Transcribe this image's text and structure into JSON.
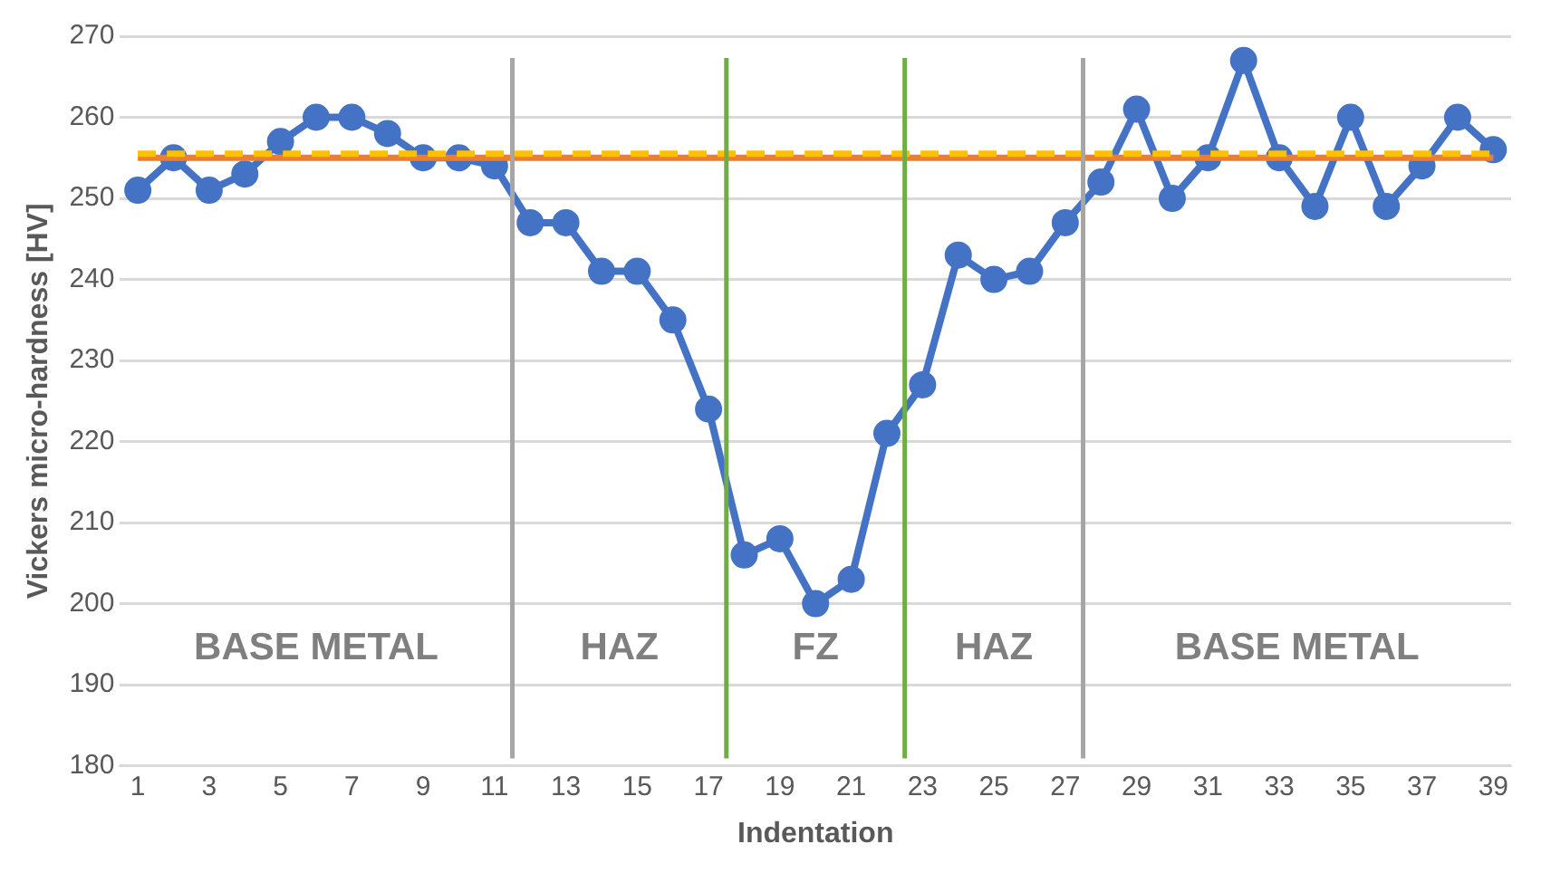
{
  "chart_data": {
    "type": "line",
    "xlabel": "Indentation",
    "ylabel": "Vickers micro-hardness [HV]",
    "x": [
      1,
      2,
      3,
      4,
      5,
      6,
      7,
      8,
      9,
      10,
      11,
      12,
      13,
      14,
      15,
      16,
      17,
      18,
      19,
      20,
      21,
      22,
      23,
      24,
      25,
      26,
      27,
      28,
      29,
      30,
      31,
      32,
      33,
      34,
      35,
      36,
      37,
      38,
      39
    ],
    "series": [
      {
        "color": "#4472c4",
        "values": [
          251,
          255,
          251,
          253,
          257,
          260,
          260,
          258,
          255,
          255,
          254,
          247,
          247,
          241,
          241,
          235,
          224,
          206,
          208,
          200,
          203,
          221,
          227,
          243,
          240,
          241,
          247,
          252,
          261,
          250,
          255,
          267,
          255,
          249,
          260,
          249,
          254,
          260,
          256
        ]
      }
    ],
    "xlim": [
      0.5,
      39.5
    ],
    "xticks": [
      1,
      3,
      5,
      7,
      9,
      11,
      13,
      15,
      17,
      19,
      21,
      23,
      25,
      27,
      29,
      31,
      33,
      35,
      37,
      39
    ],
    "ylim": [
      180,
      270
    ],
    "yticks": [
      180,
      190,
      200,
      210,
      220,
      230,
      240,
      250,
      260,
      270
    ],
    "grid": "y",
    "legend": false,
    "marker": "circle",
    "line_style": "solid",
    "ref_lines": [
      {
        "axis": "y",
        "value": 255,
        "color": "#ed7d31",
        "line_style": "solid"
      },
      {
        "axis": "y",
        "value": 255.5,
        "color": "#ffc000",
        "line_style": "dashed"
      },
      {
        "axis": "x",
        "value": 11.5,
        "color": "#a6a6a6"
      },
      {
        "axis": "x",
        "value": 17.5,
        "color": "#70ad47"
      },
      {
        "axis": "x",
        "value": 22.5,
        "color": "#70ad47"
      },
      {
        "axis": "x",
        "value": 27.5,
        "color": "#a6a6a6"
      }
    ],
    "annotations": [
      "BASE METAL",
      "HAZ",
      "FZ",
      "HAZ",
      "BASE METAL"
    ]
  }
}
